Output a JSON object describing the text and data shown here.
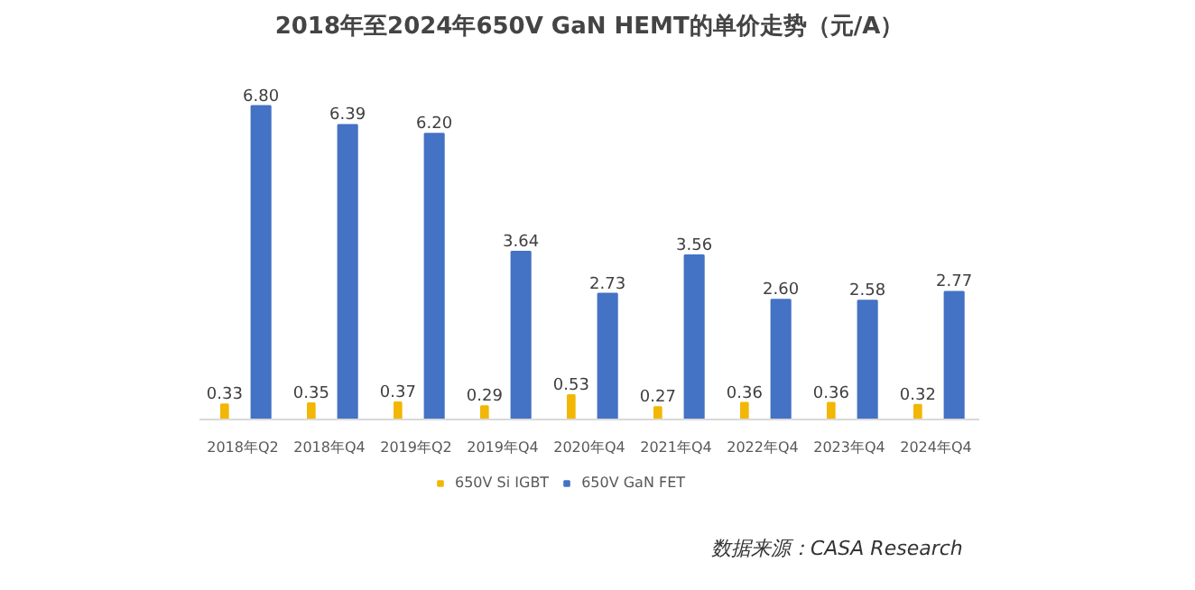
{
  "chart_data": {
    "type": "bar",
    "title": "2018年至2024年650V GaN HEMT的单价走势（元/A）",
    "categories": [
      "2018年Q2",
      "2018年Q4",
      "2019年Q2",
      "2019年Q4",
      "2020年Q4",
      "2021年Q4",
      "2022年Q4",
      "2023年Q4",
      "2024年Q4"
    ],
    "series": [
      {
        "name": "650V Si IGBT",
        "color": "#f2b705",
        "values": [
          0.33,
          0.35,
          0.37,
          0.29,
          0.53,
          0.27,
          0.36,
          0.36,
          0.32
        ],
        "value_labels": [
          "0.33",
          "0.35",
          "0.37",
          "0.29",
          "0.53",
          "0.27",
          "0.36",
          "0.36",
          "0.32"
        ]
      },
      {
        "name": "650V GaN FET",
        "color": "#4472c4",
        "values": [
          6.8,
          6.39,
          6.2,
          3.64,
          2.73,
          3.56,
          2.6,
          2.58,
          2.77
        ],
        "value_labels": [
          "6.80",
          "6.39",
          "6.20",
          "3.64",
          "2.73",
          "3.56",
          "2.60",
          "2.58",
          "2.77"
        ]
      }
    ],
    "tick_labels": "x",
    "legend": "bottom",
    "annotations": [
      "数据来源：CASA Research"
    ]
  }
}
